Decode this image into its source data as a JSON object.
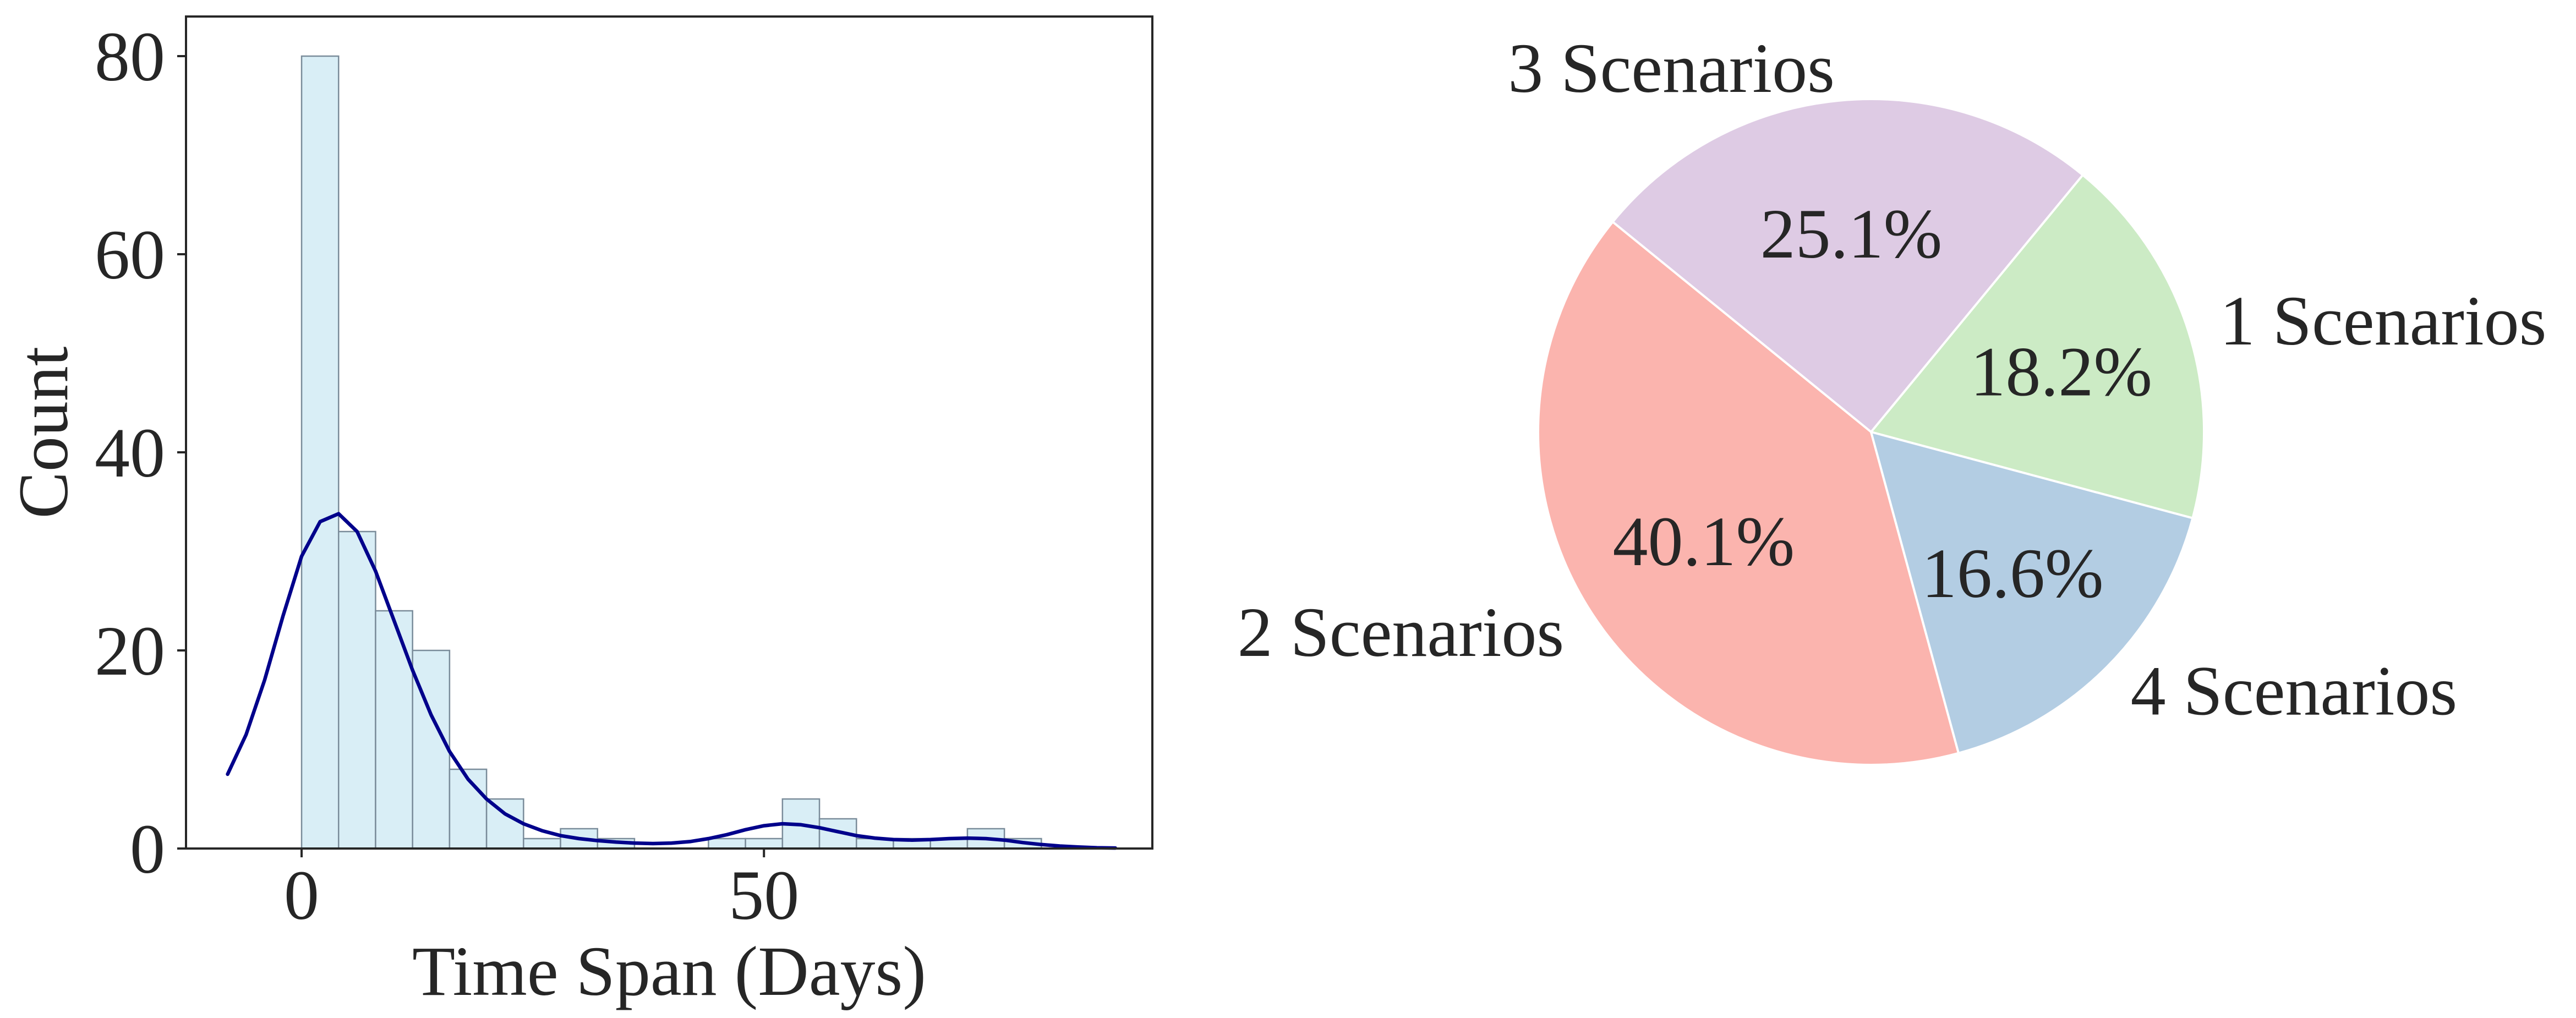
{
  "chart_data": [
    {
      "type": "bar",
      "subtype": "histogram-with-kde",
      "xlabel": "Time Span (Days)",
      "ylabel": "Count",
      "xlim": [
        -12.5,
        92
      ],
      "ylim": [
        0,
        84
      ],
      "xticks": [
        0,
        50
      ],
      "yticks": [
        0,
        20,
        40,
        60,
        80
      ],
      "grid": false,
      "bin_width": 4,
      "bins": [
        {
          "start": 0,
          "end": 4,
          "count": 80
        },
        {
          "start": 4,
          "end": 8,
          "count": 32
        },
        {
          "start": 8,
          "end": 12,
          "count": 24
        },
        {
          "start": 12,
          "end": 16,
          "count": 20
        },
        {
          "start": 16,
          "end": 20,
          "count": 8
        },
        {
          "start": 20,
          "end": 24,
          "count": 5
        },
        {
          "start": 24,
          "end": 28,
          "count": 1
        },
        {
          "start": 28,
          "end": 32,
          "count": 2
        },
        {
          "start": 32,
          "end": 36,
          "count": 1
        },
        {
          "start": 36,
          "end": 40,
          "count": 0
        },
        {
          "start": 40,
          "end": 44,
          "count": 0
        },
        {
          "start": 44,
          "end": 48,
          "count": 1
        },
        {
          "start": 48,
          "end": 52,
          "count": 1
        },
        {
          "start": 52,
          "end": 56,
          "count": 5
        },
        {
          "start": 56,
          "end": 60,
          "count": 3
        },
        {
          "start": 60,
          "end": 64,
          "count": 1
        },
        {
          "start": 64,
          "end": 68,
          "count": 1
        },
        {
          "start": 68,
          "end": 72,
          "count": 1
        },
        {
          "start": 72,
          "end": 76,
          "count": 2
        },
        {
          "start": 76,
          "end": 80,
          "count": 1
        }
      ],
      "kde": {
        "x": [
          -8,
          -6,
          -4,
          -2,
          0,
          2,
          4,
          6,
          8,
          10,
          12,
          14,
          16,
          18,
          20,
          22,
          24,
          26,
          28,
          30,
          32,
          34,
          36,
          38,
          40,
          42,
          44,
          46,
          48,
          50,
          52,
          54,
          56,
          58,
          60,
          62,
          64,
          66,
          68,
          70,
          72,
          74,
          76,
          78,
          80,
          82,
          84,
          86,
          88
        ],
        "y": [
          7.5,
          11.5,
          17,
          23.5,
          29.5,
          33,
          33.8,
          32,
          28,
          23,
          18,
          13.5,
          9.8,
          7,
          5,
          3.5,
          2.5,
          1.8,
          1.3,
          1,
          0.8,
          0.65,
          0.55,
          0.5,
          0.55,
          0.7,
          1,
          1.4,
          1.9,
          2.3,
          2.5,
          2.4,
          2.1,
          1.7,
          1.3,
          1.05,
          0.9,
          0.85,
          0.9,
          1,
          1.05,
          1,
          0.85,
          0.6,
          0.4,
          0.25,
          0.15,
          0.08,
          0.05
        ]
      },
      "colors": {
        "bar_fill": "#d9eef6",
        "bar_edge": "#7a8c9a",
        "kde_line": "#00008b",
        "axis": "#262626"
      }
    },
    {
      "type": "pie",
      "slices": [
        {
          "label": "1 Scenarios",
          "value": 18.2,
          "pct_label": "18.2%",
          "color": "#ccebc5"
        },
        {
          "label": "3 Scenarios",
          "value": 25.1,
          "pct_label": "25.1%",
          "color": "#decbe4"
        },
        {
          "label": "2 Scenarios",
          "value": 40.1,
          "pct_label": "40.1%",
          "color": "#fbb4ae"
        },
        {
          "label": "4 Scenarios",
          "value": 16.6,
          "pct_label": "16.6%",
          "color": "#b3cde3"
        }
      ],
      "start_angle_deg": -15,
      "direction": "counterclockwise",
      "edge_color": "#ffffff"
    }
  ]
}
